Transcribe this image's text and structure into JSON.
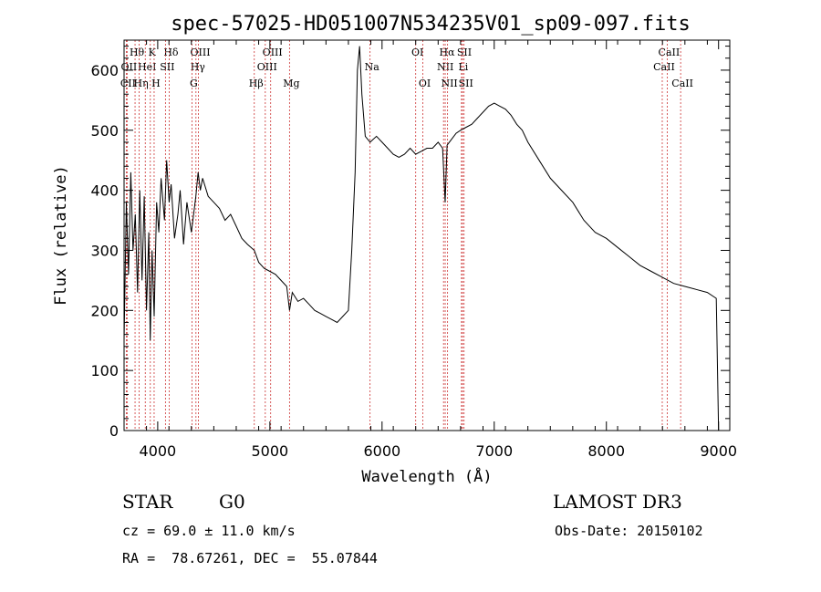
{
  "chart_data": {
    "type": "line",
    "title": "spec-57025-HD051007N534235V01_sp09-097.fits",
    "xlabel": "Wavelength (Å)",
    "ylabel": "Flux (relative)",
    "xlim": [
      3700,
      9100
    ],
    "ylim": [
      0,
      650
    ],
    "xticks": [
      4000,
      5000,
      6000,
      7000,
      8000,
      9000
    ],
    "xtick_labels": [
      "4000",
      "5000",
      "6000",
      "7000",
      "8000",
      "9000"
    ],
    "yticks": [
      0,
      100,
      200,
      300,
      400,
      500,
      600
    ],
    "ytick_labels": [
      "0",
      "100",
      "200",
      "300",
      "400",
      "500",
      "600"
    ],
    "grid": false,
    "series": [
      {
        "x": [
          3700,
          3720,
          3740,
          3760,
          3780,
          3800,
          3820,
          3840,
          3860,
          3880,
          3900,
          3920,
          3933,
          3950,
          3968,
          3990,
          4010,
          4030,
          4060,
          4080,
          4102,
          4120,
          4150,
          4180,
          4200,
          4230,
          4260,
          4300,
          4340,
          4360,
          4380,
          4400,
          4450,
          4500,
          4550,
          4600,
          4650,
          4700,
          4750,
          4800,
          4861,
          4900,
          4950,
          5000,
          5050,
          5100,
          5150,
          5175,
          5200,
          5250,
          5300,
          5350,
          5400,
          5450,
          5500,
          5550,
          5600,
          5650,
          5700,
          5730,
          5760,
          5780,
          5800,
          5820,
          5850,
          5893,
          5950,
          6000,
          6050,
          6100,
          6150,
          6200,
          6250,
          6300,
          6350,
          6400,
          6450,
          6500,
          6540,
          6563,
          6580,
          6620,
          6660,
          6700,
          6750,
          6800,
          6850,
          6900,
          6950,
          7000,
          7050,
          7100,
          7150,
          7200,
          7250,
          7300,
          7400,
          7500,
          7600,
          7700,
          7800,
          7900,
          8000,
          8100,
          8200,
          8300,
          8400,
          8500,
          8600,
          8700,
          8800,
          8900,
          8980,
          9000
        ],
        "y": [
          150,
          380,
          260,
          430,
          300,
          360,
          230,
          400,
          250,
          390,
          200,
          330,
          150,
          300,
          190,
          380,
          330,
          420,
          350,
          450,
          380,
          410,
          320,
          360,
          400,
          310,
          380,
          330,
          390,
          430,
          400,
          420,
          390,
          380,
          370,
          350,
          360,
          340,
          320,
          310,
          300,
          280,
          270,
          265,
          260,
          250,
          240,
          200,
          230,
          215,
          220,
          210,
          200,
          195,
          190,
          185,
          180,
          190,
          200,
          300,
          430,
          600,
          640,
          560,
          490,
          480,
          490,
          480,
          470,
          460,
          455,
          460,
          470,
          460,
          465,
          470,
          470,
          480,
          470,
          380,
          475,
          485,
          495,
          500,
          505,
          510,
          520,
          530,
          540,
          545,
          540,
          535,
          525,
          510,
          500,
          480,
          450,
          420,
          400,
          380,
          350,
          330,
          320,
          305,
          290,
          275,
          265,
          255,
          245,
          240,
          235,
          230,
          220,
          0
        ]
      }
    ],
    "spectral_lines": [
      {
        "label": "Hθ",
        "x": 3798,
        "row": 0
      },
      {
        "label": "OII",
        "x": 3727,
        "row": 1
      },
      {
        "label": "CII",
        "x": 3720,
        "row": 2
      },
      {
        "label": "K",
        "x": 3934,
        "row": 0
      },
      {
        "label": "HeI",
        "x": 3889,
        "row": 1
      },
      {
        "label": "Hη",
        "x": 3835,
        "row": 2
      },
      {
        "label": "Hδ",
        "x": 4102,
        "row": 0
      },
      {
        "label": "SII",
        "x": 4069,
        "row": 1
      },
      {
        "label": "H",
        "x": 3968,
        "row": 2
      },
      {
        "label": "OIII",
        "x": 4363,
        "row": 0
      },
      {
        "label": "Hγ",
        "x": 4341,
        "row": 1
      },
      {
        "label": "G",
        "x": 4305,
        "row": 2
      },
      {
        "label": "OIII",
        "x": 5007,
        "row": 0
      },
      {
        "label": "OIII",
        "x": 4959,
        "row": 1
      },
      {
        "label": "Hβ",
        "x": 4861,
        "row": 2
      },
      {
        "label": "Mg",
        "x": 5175,
        "row": 2
      },
      {
        "label": "Na",
        "x": 5893,
        "row": 1
      },
      {
        "label": "OI",
        "x": 6300,
        "row": 0
      },
      {
        "label": "OI",
        "x": 6364,
        "row": 2
      },
      {
        "label": "Hα",
        "x": 6563,
        "row": 0
      },
      {
        "label": "NII",
        "x": 6548,
        "row": 1
      },
      {
        "label": "NII",
        "x": 6584,
        "row": 2
      },
      {
        "label": "SII",
        "x": 6717,
        "row": 0
      },
      {
        "label": "Li",
        "x": 6708,
        "row": 1
      },
      {
        "label": "SII",
        "x": 6731,
        "row": 2
      },
      {
        "label": "CaII",
        "x": 8542,
        "row": 0
      },
      {
        "label": "CaII",
        "x": 8498,
        "row": 1
      },
      {
        "label": "CaII",
        "x": 8662,
        "row": 2
      }
    ],
    "line_color": "#000000",
    "marker_color": "#cc3333"
  },
  "info": {
    "object_class": "STAR",
    "subclass": "G0",
    "survey": "LAMOST DR3",
    "cz": "cz = 69.0 ± 11.0 km/s",
    "obs_date": "Obs-Date: 20150102",
    "coords": "RA =  78.67261, DEC =  55.07844"
  }
}
